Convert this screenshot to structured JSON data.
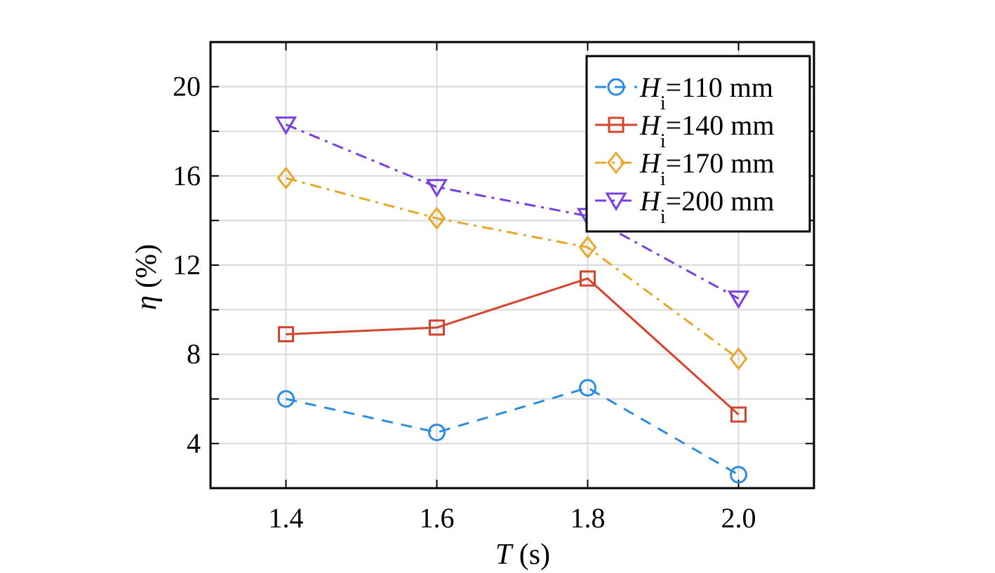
{
  "chart_data": {
    "type": "line",
    "x": [
      1.4,
      1.6,
      1.8,
      2.0
    ],
    "x_ticks": [
      "1.4",
      "1.6",
      "1.8",
      "2.0"
    ],
    "y_ticks": [
      "4",
      "8",
      "12",
      "16",
      "20"
    ],
    "xlim": [
      1.3,
      2.1
    ],
    "ylim": [
      2,
      22
    ],
    "grid": true,
    "xlabel": {
      "symbol": "T",
      "unit": "(s)"
    },
    "ylabel": {
      "symbol": "η",
      "unit": "(%)"
    },
    "legend_position": "top-right",
    "series": [
      {
        "name": "Hi=110 mm",
        "label_symbol": "H",
        "label_subscript": "i",
        "label_value": "=110 mm",
        "color": "#2b8ce0",
        "marker": "circle",
        "line_style": "dashed",
        "values": [
          6.0,
          4.5,
          6.5,
          2.6
        ]
      },
      {
        "name": "Hi=140 mm",
        "label_symbol": "H",
        "label_subscript": "i",
        "label_value": "=140 mm",
        "color": "#d4442a",
        "marker": "square",
        "line_style": "solid",
        "values": [
          8.9,
          9.2,
          11.4,
          5.3
        ]
      },
      {
        "name": "Hi=170 mm",
        "label_symbol": "H",
        "label_subscript": "i",
        "label_value": "=170 mm",
        "color": "#e6a82a",
        "marker": "diamond",
        "line_style": "dashdot",
        "values": [
          15.9,
          14.1,
          12.8,
          7.8
        ]
      },
      {
        "name": "Hi=200 mm",
        "label_symbol": "H",
        "label_subscript": "i",
        "label_value": "=200 mm",
        "color": "#7a3fe0",
        "marker": "triangle-down",
        "line_style": "dashdot",
        "values": [
          18.3,
          15.5,
          14.2,
          10.5
        ]
      }
    ]
  }
}
